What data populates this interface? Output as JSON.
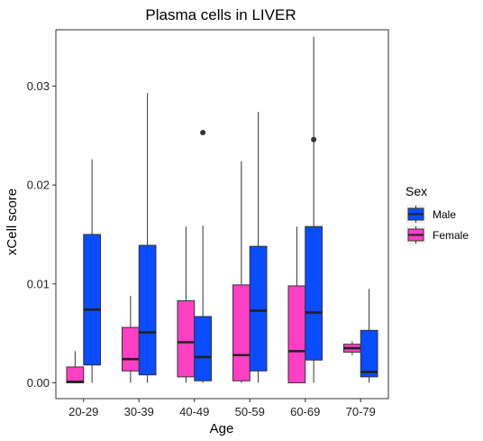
{
  "chart_data": {
    "type": "box",
    "title": "Plasma cells in LIVER",
    "xlabel": "Age",
    "ylabel": "xCell score",
    "categories": [
      "20-29",
      "30-39",
      "40-49",
      "50-59",
      "60-69",
      "70-79"
    ],
    "ylim": [
      -0.0016,
      0.0357
    ],
    "yticks": [
      0.0,
      0.01,
      0.02,
      0.03
    ],
    "ytick_labels": [
      "0.00",
      "0.01",
      "0.02",
      "0.03"
    ],
    "grid": false,
    "legend": {
      "title": "Sex",
      "placement": "right",
      "entries": [
        "Male",
        "Female"
      ]
    },
    "colors": {
      "Male": "#0a4cff",
      "Female": "#ff3fc4"
    },
    "series": [
      {
        "name": "Female",
        "boxes": [
          {
            "category": "20-29",
            "whisker_low": 0.0,
            "q1": 0.0,
            "median": 0.0001,
            "q3": 0.0016,
            "whisker_high": 0.0032,
            "outliers": []
          },
          {
            "category": "30-39",
            "whisker_low": 0.0,
            "q1": 0.0012,
            "median": 0.0024,
            "q3": 0.0056,
            "whisker_high": 0.0088,
            "outliers": []
          },
          {
            "category": "40-49",
            "whisker_low": 0.0,
            "q1": 0.0006,
            "median": 0.0041,
            "q3": 0.0083,
            "whisker_high": 0.0158,
            "outliers": []
          },
          {
            "category": "50-59",
            "whisker_low": 0.0,
            "q1": 0.0002,
            "median": 0.0028,
            "q3": 0.0099,
            "whisker_high": 0.0224,
            "outliers": []
          },
          {
            "category": "60-69",
            "whisker_low": 0.0,
            "q1": 0.0,
            "median": 0.0032,
            "q3": 0.0098,
            "whisker_high": 0.0158,
            "outliers": []
          },
          {
            "category": "70-79",
            "whisker_low": 0.0028,
            "q1": 0.0031,
            "median": 0.0035,
            "q3": 0.0039,
            "whisker_high": 0.0042,
            "outliers": []
          }
        ]
      },
      {
        "name": "Male",
        "boxes": [
          {
            "category": "20-29",
            "whisker_low": 0.0,
            "q1": 0.0018,
            "median": 0.0074,
            "q3": 0.015,
            "whisker_high": 0.0226,
            "outliers": []
          },
          {
            "category": "30-39",
            "whisker_low": 0.0,
            "q1": 0.0008,
            "median": 0.0051,
            "q3": 0.0139,
            "whisker_high": 0.0293,
            "outliers": []
          },
          {
            "category": "40-49",
            "whisker_low": 0.0,
            "q1": 0.0002,
            "median": 0.0026,
            "q3": 0.0067,
            "whisker_high": 0.0159,
            "outliers": [
              0.0253
            ]
          },
          {
            "category": "50-59",
            "whisker_low": 0.0,
            "q1": 0.0012,
            "median": 0.0073,
            "q3": 0.0138,
            "whisker_high": 0.0274,
            "outliers": []
          },
          {
            "category": "60-69",
            "whisker_low": 0.0,
            "q1": 0.0023,
            "median": 0.0071,
            "q3": 0.0158,
            "whisker_high": 0.035,
            "outliers": [
              0.0246
            ]
          },
          {
            "category": "70-79",
            "whisker_low": 0.0,
            "q1": 0.0006,
            "median": 0.0011,
            "q3": 0.0053,
            "whisker_high": 0.0095,
            "outliers": []
          }
        ]
      }
    ]
  }
}
